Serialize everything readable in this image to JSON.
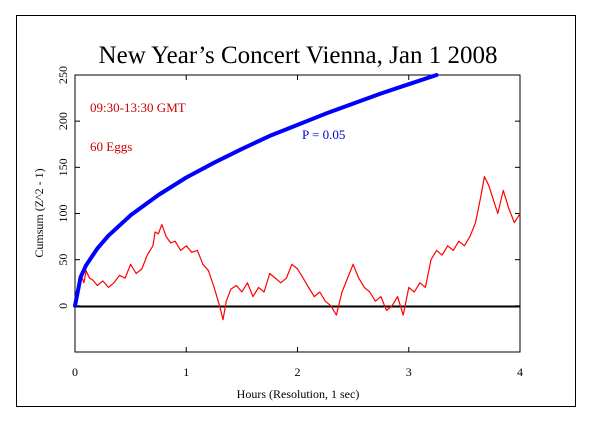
{
  "chart_data": {
    "type": "line",
    "title": "New Year’s Concert Vienna, Jan 1 2008",
    "xlabel": "Hours (Resolution, 1 sec)",
    "ylabel": "Cumsum (Z^2 - 1)",
    "xlim": [
      0,
      4
    ],
    "ylim": [
      -50,
      250
    ],
    "x_ticks": [
      0,
      1,
      2,
      3,
      4
    ],
    "y_ticks": [
      0,
      50,
      100,
      150,
      200,
      250
    ],
    "annotations": {
      "time_range": "09:30-13:30 GMT",
      "eggs": "60 Eggs",
      "p_label": "P = 0.05"
    },
    "colors": {
      "data": "#ff0000",
      "envelope": "#0000ff",
      "zero_line": "#000000",
      "annotation_red": "#cc0000",
      "annotation_blue": "#0000cc"
    },
    "series": [
      {
        "kind": "data",
        "x": [
          0,
          0.02,
          0.05,
          0.08,
          0.1,
          0.13,
          0.16,
          0.2,
          0.25,
          0.3,
          0.35,
          0.4,
          0.45,
          0.5,
          0.55,
          0.6,
          0.65,
          0.7,
          0.72,
          0.75,
          0.78,
          0.82,
          0.86,
          0.9,
          0.95,
          1.0,
          1.05,
          1.1,
          1.15,
          1.2,
          1.25,
          1.3,
          1.33,
          1.36,
          1.4,
          1.45,
          1.5,
          1.55,
          1.6,
          1.65,
          1.7,
          1.75,
          1.8,
          1.85,
          1.9,
          1.95,
          2.0,
          2.05,
          2.1,
          2.15,
          2.2,
          2.25,
          2.3,
          2.35,
          2.4,
          2.45,
          2.5,
          2.55,
          2.6,
          2.65,
          2.7,
          2.75,
          2.8,
          2.85,
          2.9,
          2.95,
          3.0,
          3.05,
          3.1,
          3.15,
          3.2,
          3.25,
          3.3,
          3.35,
          3.4,
          3.45,
          3.5,
          3.55,
          3.6,
          3.65,
          3.68,
          3.72,
          3.76,
          3.8,
          3.85,
          3.9,
          3.95,
          4.0
        ],
        "y": [
          0,
          15,
          35,
          25,
          38,
          30,
          28,
          22,
          27,
          20,
          25,
          33,
          30,
          45,
          35,
          40,
          55,
          65,
          80,
          78,
          88,
          75,
          68,
          70,
          60,
          65,
          58,
          60,
          45,
          38,
          20,
          0,
          -15,
          5,
          18,
          22,
          15,
          25,
          10,
          20,
          15,
          35,
          30,
          25,
          30,
          45,
          40,
          30,
          20,
          10,
          15,
          5,
          0,
          -10,
          15,
          30,
          45,
          30,
          20,
          15,
          5,
          10,
          -5,
          0,
          10,
          -10,
          20,
          15,
          25,
          20,
          50,
          60,
          55,
          65,
          60,
          70,
          65,
          75,
          90,
          120,
          140,
          130,
          115,
          100,
          125,
          105,
          90,
          100
        ]
      },
      {
        "kind": "envelope",
        "name": "P = 0.05",
        "x": [
          0,
          0.05,
          0.1,
          0.2,
          0.3,
          0.5,
          0.75,
          1.0,
          1.25,
          1.5,
          1.75,
          2.0,
          2.25,
          2.5,
          2.75,
          3.0,
          3.25
        ],
        "y": [
          0,
          31,
          44,
          62,
          76,
          98,
          120,
          139,
          155,
          170,
          184,
          196,
          208,
          219,
          230,
          240,
          250
        ]
      }
    ]
  }
}
